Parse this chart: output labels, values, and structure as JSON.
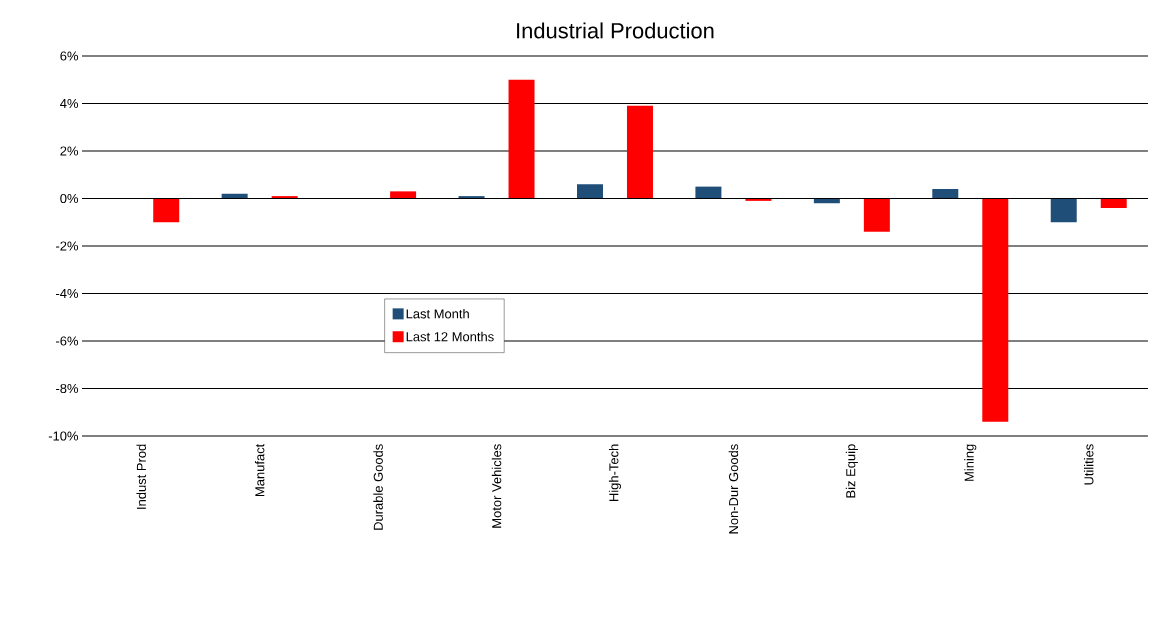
{
  "chart_data": {
    "type": "bar",
    "title": "Industrial Production",
    "categories": [
      "Indust Prod",
      "Manufact",
      "Durable Goods",
      "Motor Vehicles",
      "High-Tech",
      "Non-Dur Goods",
      "Biz Equip",
      "Mining",
      "Utilities"
    ],
    "series": [
      {
        "name": "Last Month",
        "color": "#1f4e79",
        "values": [
          0.0,
          0.2,
          0.0,
          0.1,
          0.6,
          0.5,
          -0.2,
          0.4,
          -1.0
        ]
      },
      {
        "name": "Last 12 Months",
        "color": "#ff0000",
        "values": [
          -1.0,
          0.1,
          0.3,
          5.0,
          3.9,
          -0.1,
          -1.4,
          -9.4,
          -0.4
        ]
      }
    ],
    "ylim": [
      -10,
      6
    ],
    "yticks": [
      {
        "value": -10,
        "label": "-10%"
      },
      {
        "value": -8,
        "label": "-8%"
      },
      {
        "value": -6,
        "label": "-6%"
      },
      {
        "value": -4,
        "label": "-4%"
      },
      {
        "value": -2,
        "label": "-2%"
      },
      {
        "value": 0,
        "label": "0%"
      },
      {
        "value": 2,
        "label": "2%"
      },
      {
        "value": 4,
        "label": "4%"
      },
      {
        "value": 6,
        "label": "6%"
      }
    ],
    "grid": "y",
    "legend": "center"
  }
}
